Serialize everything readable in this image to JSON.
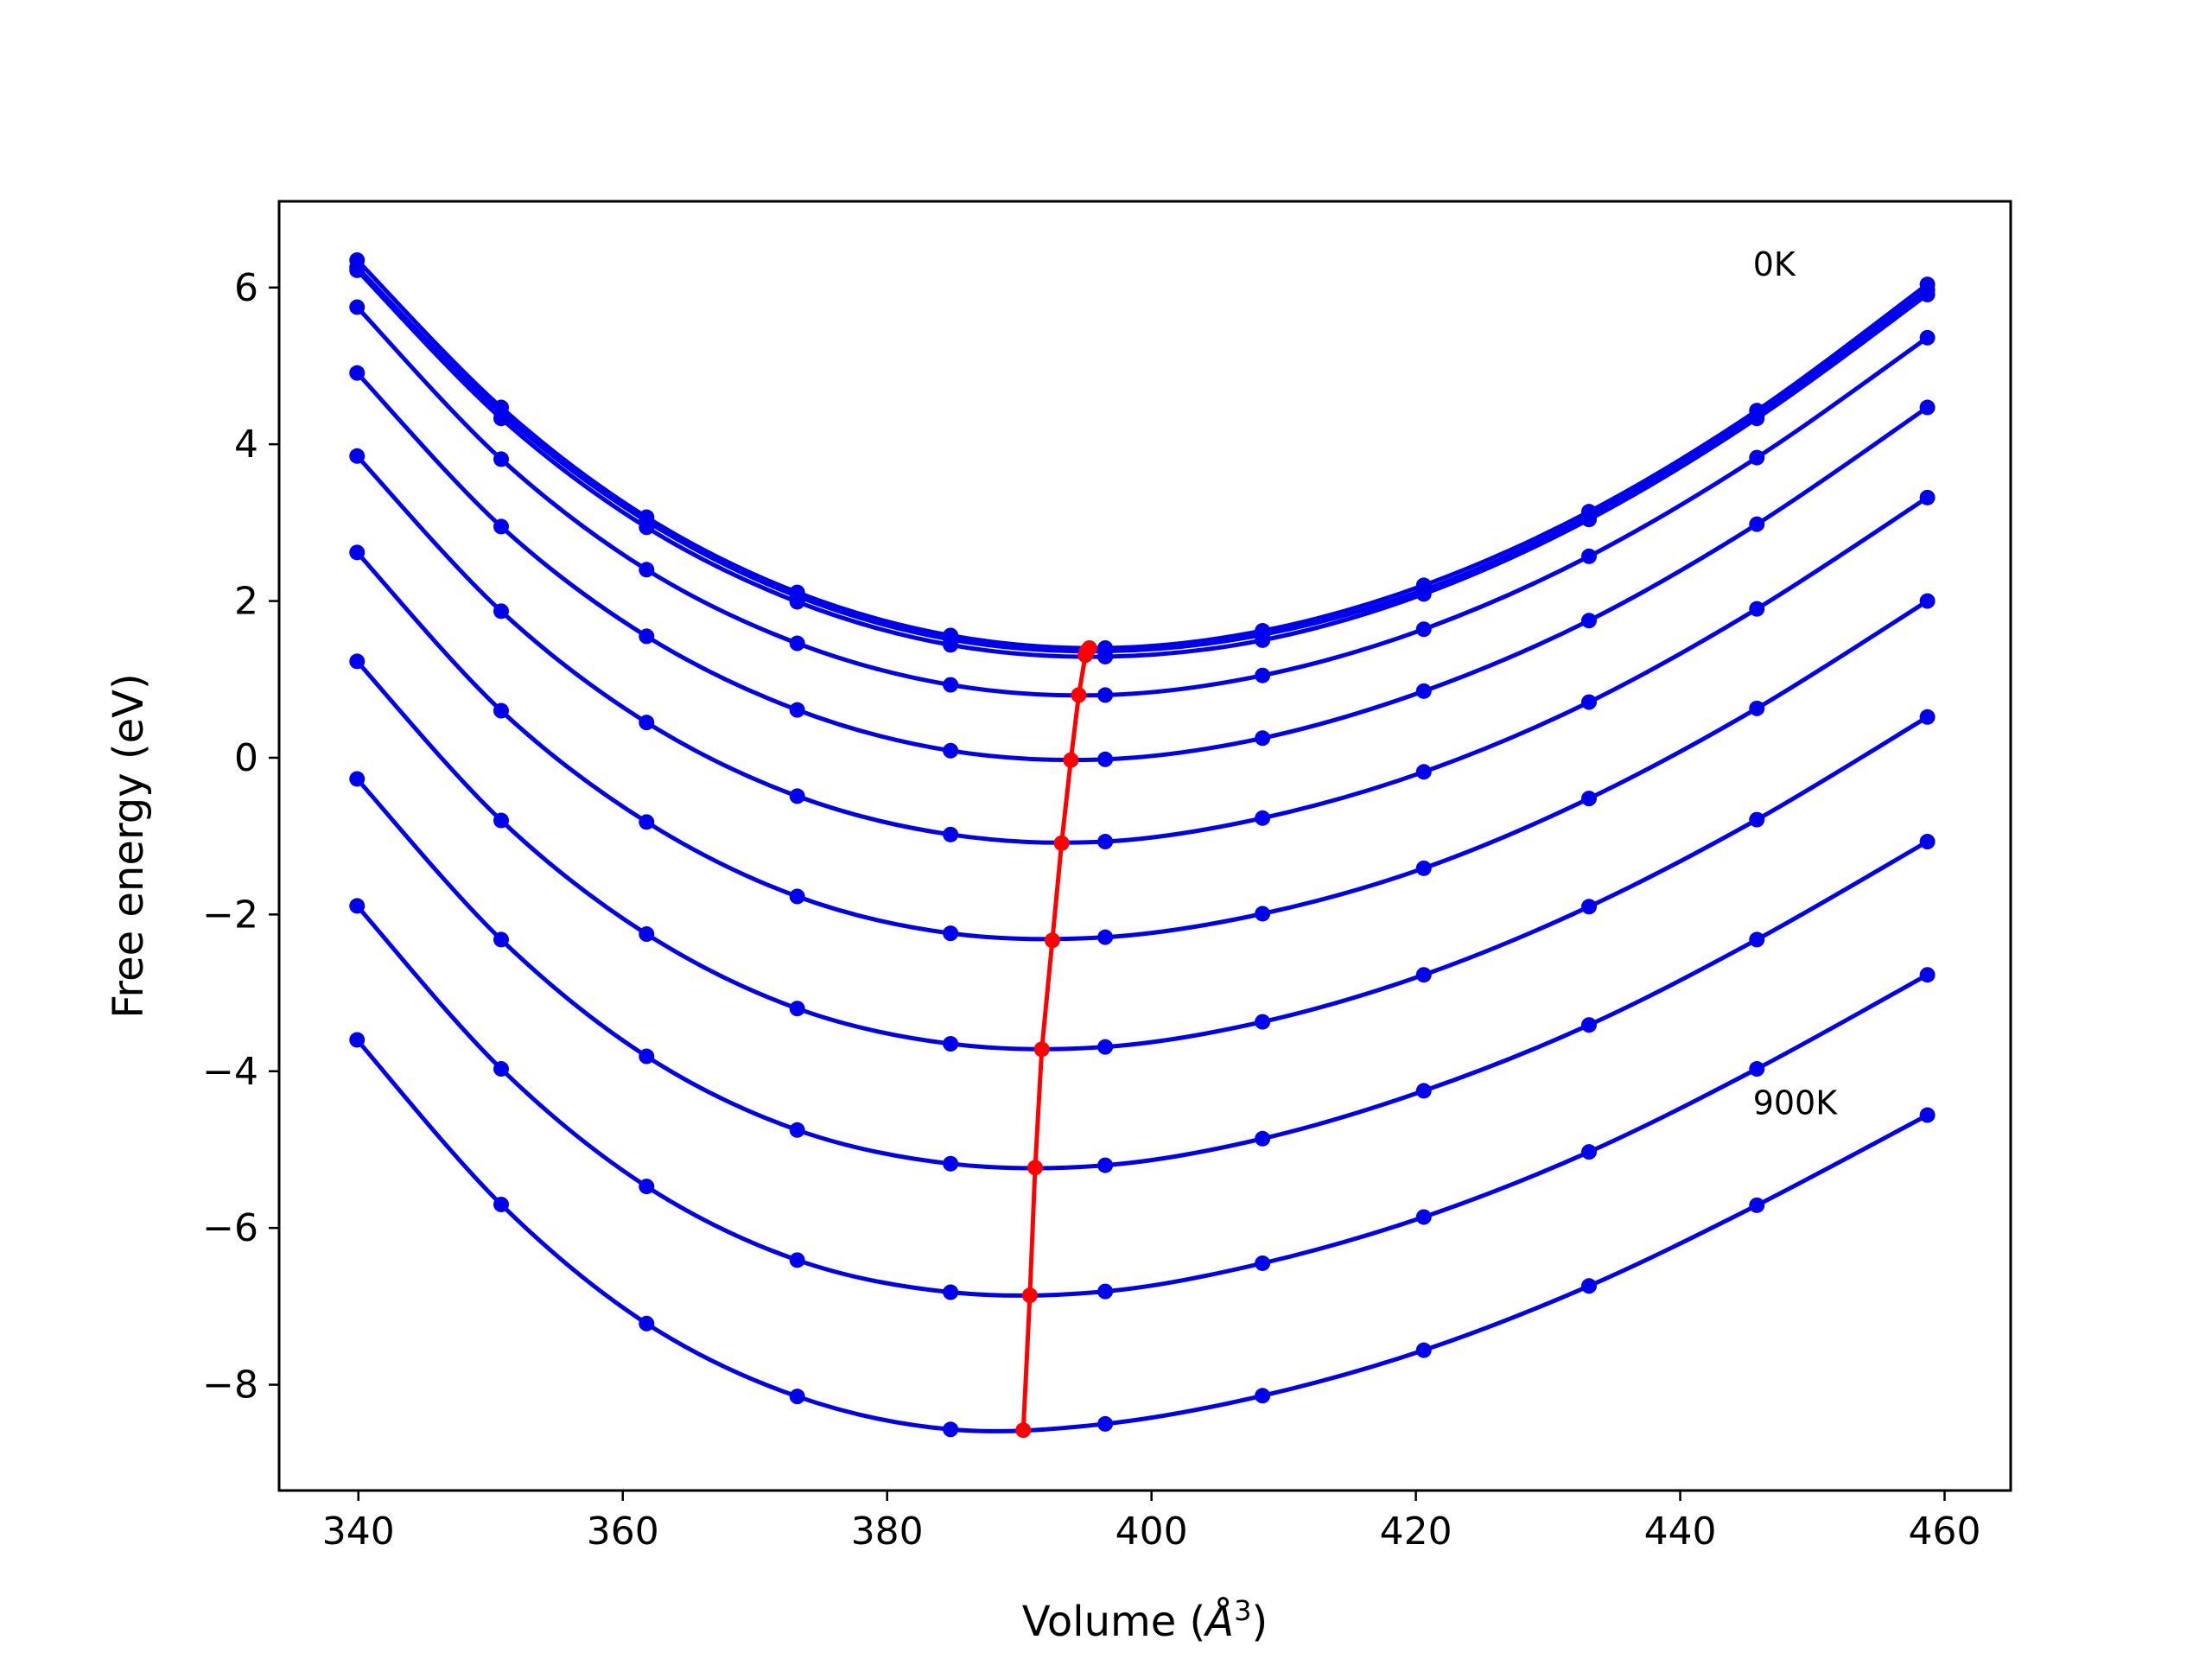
{
  "chart_data": {
    "type": "line",
    "title": "",
    "xlabel": "Volume (",
    "xlabel_symbol": "Å",
    "xlabel_exp": "3",
    "xlabel_close": ")",
    "ylabel": "Free energy (eV)",
    "xlim": [
      334,
      465
    ],
    "ylim": [
      -9.35,
      7.1
    ],
    "xticks": [
      340,
      360,
      380,
      400,
      420,
      440,
      460
    ],
    "yticks": [
      6,
      4,
      2,
      0,
      -2,
      -4,
      -6,
      -8
    ],
    "ytick_labels": [
      "6",
      "4",
      "2",
      "0",
      "−2",
      "−4",
      "−6",
      "−8"
    ],
    "grid": false,
    "legend": "none",
    "annotations": [
      {
        "text": "0K",
        "x": 445.5,
        "y": 6.15
      },
      {
        "text": "900K",
        "x": 445.5,
        "y": -4.55
      }
    ],
    "series_color": "#0000ee",
    "minima_color": "#ff0000",
    "x": [
      339.9,
      350.8,
      361.8,
      373.2,
      384.8,
      396.5,
      408.4,
      420.6,
      433.1,
      445.8,
      458.7
    ],
    "series": [
      {
        "values": [
          6.35,
          4.47,
          3.07,
          2.11,
          1.56,
          1.4,
          1.62,
          2.2,
          3.14,
          4.43,
          6.04
        ],
        "min": {
          "x": 395.3,
          "y": 1.4
        }
      },
      {
        "values": [
          6.26,
          4.4,
          3.02,
          2.06,
          1.51,
          1.36,
          1.57,
          2.14,
          3.08,
          4.37,
          5.97
        ],
        "min": {
          "x": 395.1,
          "y": 1.36
        }
      },
      {
        "values": [
          6.22,
          4.33,
          2.94,
          1.99,
          1.44,
          1.29,
          1.5,
          2.09,
          3.04,
          4.33,
          5.91
        ],
        "min": {
          "x": 395.0,
          "y": 1.31
        }
      },
      {
        "values": [
          5.75,
          3.81,
          2.4,
          1.46,
          0.93,
          0.8,
          1.05,
          1.64,
          2.57,
          3.83,
          5.36
        ],
        "min": {
          "x": 394.5,
          "y": 0.8
        }
      },
      {
        "values": [
          4.91,
          2.95,
          1.55,
          0.61,
          0.09,
          -0.02,
          0.25,
          0.85,
          1.75,
          2.98,
          4.47
        ],
        "min": {
          "x": 393.9,
          "y": -0.03
        }
      },
      {
        "values": [
          3.85,
          1.87,
          0.45,
          -0.49,
          -0.98,
          -1.07,
          -0.77,
          -0.18,
          0.71,
          1.9,
          3.32
        ],
        "min": {
          "x": 393.2,
          "y": -1.09
        }
      },
      {
        "values": [
          2.62,
          0.6,
          -0.82,
          -1.77,
          -2.24,
          -2.29,
          -1.99,
          -1.41,
          -0.52,
          0.63,
          2.0
        ],
        "min": {
          "x": 392.5,
          "y": -2.33
        }
      },
      {
        "values": [
          1.23,
          -0.8,
          -2.25,
          -3.2,
          -3.65,
          -3.69,
          -3.37,
          -2.77,
          -1.9,
          -0.79,
          0.52
        ],
        "min": {
          "x": 391.7,
          "y": -3.72
        }
      },
      {
        "values": [
          -0.27,
          -2.32,
          -3.81,
          -4.75,
          -5.18,
          -5.2,
          -4.86,
          -4.25,
          -3.41,
          -2.32,
          -1.07
        ],
        "min": {
          "x": 391.2,
          "y": -5.23
        }
      },
      {
        "values": [
          -1.89,
          -3.97,
          -5.47,
          -6.41,
          -6.82,
          -6.81,
          -6.45,
          -5.86,
          -5.03,
          -3.97,
          -2.77
        ],
        "min": {
          "x": 390.8,
          "y": -6.86
        }
      },
      {
        "values": [
          -3.6,
          -5.7,
          -7.22,
          -8.15,
          -8.57,
          -8.5,
          -8.14,
          -7.56,
          -6.74,
          -5.71,
          -4.56
        ],
        "min": {
          "x": 390.3,
          "y": -8.58
        }
      }
    ]
  }
}
